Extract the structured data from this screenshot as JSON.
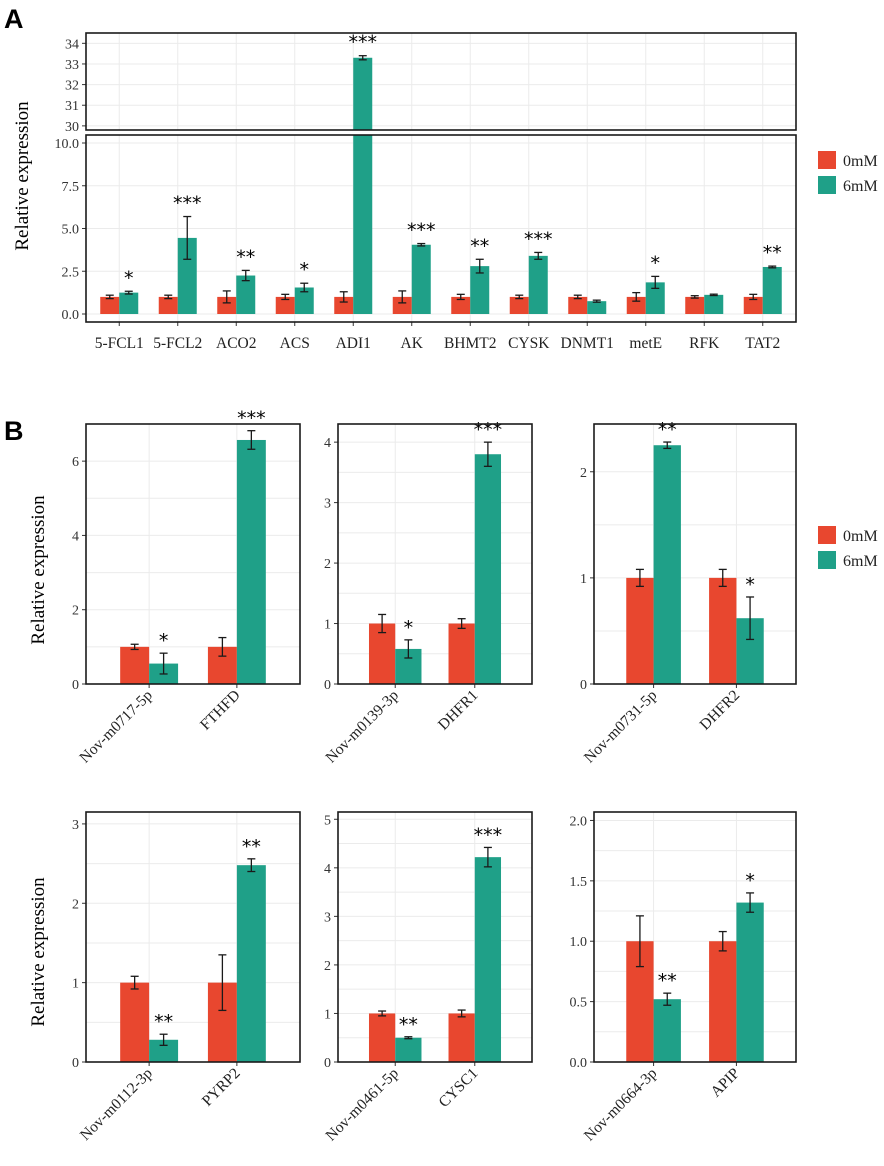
{
  "colors": {
    "series_0": "#e8472f",
    "series_1": "#1fa088"
  },
  "panel_a": {
    "letter": "A",
    "ylabel": "Relative expression",
    "legend": [
      "0mM",
      "6mM"
    ]
  },
  "panel_b": {
    "letter": "B",
    "ylabel": "Relative expression",
    "legend": [
      "0mM",
      "6mM"
    ]
  },
  "chart_data": [
    {
      "id": "A",
      "type": "bar",
      "title": "",
      "ylabel": "Relative expression",
      "xlabel": "",
      "broken_axis": {
        "lower": [
          0,
          10
        ],
        "upper": [
          29.8,
          34.5
        ]
      },
      "yticks_lower": [
        "0.0",
        "2.5",
        "5.0",
        "7.5",
        "10.0"
      ],
      "yticks_upper": [
        "30",
        "31",
        "32",
        "33",
        "34"
      ],
      "categories": [
        "5-FCL1",
        "5-FCL2",
        "ACO2",
        "ACS",
        "ADI1",
        "AK",
        "BHMT2",
        "CYSK",
        "DNMT1",
        "metE",
        "RFK",
        "TAT2"
      ],
      "series": [
        {
          "name": "0mM",
          "values": [
            1,
            1,
            1,
            1,
            1,
            1,
            1,
            1,
            1,
            1,
            1,
            1
          ],
          "errors": [
            0.1,
            0.1,
            0.35,
            0.15,
            0.3,
            0.35,
            0.15,
            0.1,
            0.1,
            0.25,
            0.07,
            0.15
          ]
        },
        {
          "name": "6mM",
          "values": [
            1.25,
            4.45,
            2.25,
            1.55,
            33.3,
            4.05,
            2.8,
            3.4,
            0.75,
            1.85,
            1.12,
            2.75
          ],
          "errors": [
            0.08,
            1.25,
            0.3,
            0.25,
            0.1,
            0.07,
            0.4,
            0.2,
            0.06,
            0.35,
            0.04,
            0.05
          ]
        }
      ],
      "significance": [
        "*",
        "***",
        "**",
        "*",
        "***",
        "***",
        "**",
        "***",
        "",
        "*",
        "",
        "**"
      ]
    },
    {
      "id": "B1",
      "type": "bar",
      "ylabel": "Relative expression",
      "ylim": [
        0,
        7
      ],
      "yticks": [
        "0",
        "2",
        "4",
        "6"
      ],
      "categories": [
        "Nov-m0717-5p",
        "FTHFD"
      ],
      "series": [
        {
          "name": "0mM",
          "values": [
            1.0,
            1.0
          ],
          "errors": [
            0.07,
            0.25
          ]
        },
        {
          "name": "6mM",
          "values": [
            0.55,
            6.57
          ],
          "errors": [
            0.28,
            0.25
          ]
        }
      ],
      "significance": [
        "*",
        "***"
      ]
    },
    {
      "id": "B2",
      "type": "bar",
      "ylim": [
        0,
        4.3
      ],
      "yticks": [
        "0",
        "1",
        "2",
        "3",
        "4"
      ],
      "categories": [
        "Nov-m0139-3p",
        "DHFR1"
      ],
      "series": [
        {
          "name": "0mM",
          "values": [
            1.0,
            1.0
          ],
          "errors": [
            0.15,
            0.08
          ]
        },
        {
          "name": "6mM",
          "values": [
            0.58,
            3.8
          ],
          "errors": [
            0.15,
            0.2
          ]
        }
      ],
      "significance": [
        "*",
        "***"
      ]
    },
    {
      "id": "B3",
      "type": "bar",
      "ylim": [
        0,
        2.45
      ],
      "yticks": [
        "0",
        "1",
        "2"
      ],
      "categories": [
        "Nov-m0731-5p",
        "DHFR2"
      ],
      "series": [
        {
          "name": "0mM",
          "values": [
            1.0,
            1.0
          ],
          "errors": [
            0.08,
            0.08
          ]
        },
        {
          "name": "6mM",
          "values": [
            2.25,
            0.62
          ],
          "errors": [
            0.03,
            0.2
          ]
        }
      ],
      "significance": [
        "**",
        "*"
      ]
    },
    {
      "id": "B4",
      "type": "bar",
      "ylabel": "Relative expression",
      "ylim": [
        0,
        3.15
      ],
      "yticks": [
        "0",
        "1",
        "2",
        "3"
      ],
      "categories": [
        "Nov-m0112-3p",
        "PYRP2"
      ],
      "series": [
        {
          "name": "0mM",
          "values": [
            1.0,
            1.0
          ],
          "errors": [
            0.08,
            0.35
          ]
        },
        {
          "name": "6mM",
          "values": [
            0.28,
            2.48
          ],
          "errors": [
            0.07,
            0.08
          ]
        }
      ],
      "significance": [
        "**",
        "**"
      ]
    },
    {
      "id": "B5",
      "type": "bar",
      "ylim": [
        0,
        5.15
      ],
      "yticks": [
        "0",
        "1",
        "2",
        "3",
        "4",
        "5"
      ],
      "categories": [
        "Nov-m0461-5p",
        "CYSC1"
      ],
      "series": [
        {
          "name": "0mM",
          "values": [
            1.0,
            1.0
          ],
          "errors": [
            0.05,
            0.07
          ]
        },
        {
          "name": "6mM",
          "values": [
            0.5,
            4.22
          ],
          "errors": [
            0.02,
            0.2
          ]
        }
      ],
      "significance": [
        "**",
        "***"
      ]
    },
    {
      "id": "B6",
      "type": "bar",
      "ylim": [
        0,
        2.07
      ],
      "yticks": [
        "0.0",
        "0.5",
        "1.0",
        "1.5",
        "2.0"
      ],
      "categories": [
        "Nov-m0664-3p",
        "APIP"
      ],
      "series": [
        {
          "name": "0mM",
          "values": [
            1.0,
            1.0
          ],
          "errors": [
            0.21,
            0.08
          ]
        },
        {
          "name": "6mM",
          "values": [
            0.52,
            1.32
          ],
          "errors": [
            0.05,
            0.08
          ]
        }
      ],
      "significance": [
        "**",
        "*"
      ]
    }
  ]
}
